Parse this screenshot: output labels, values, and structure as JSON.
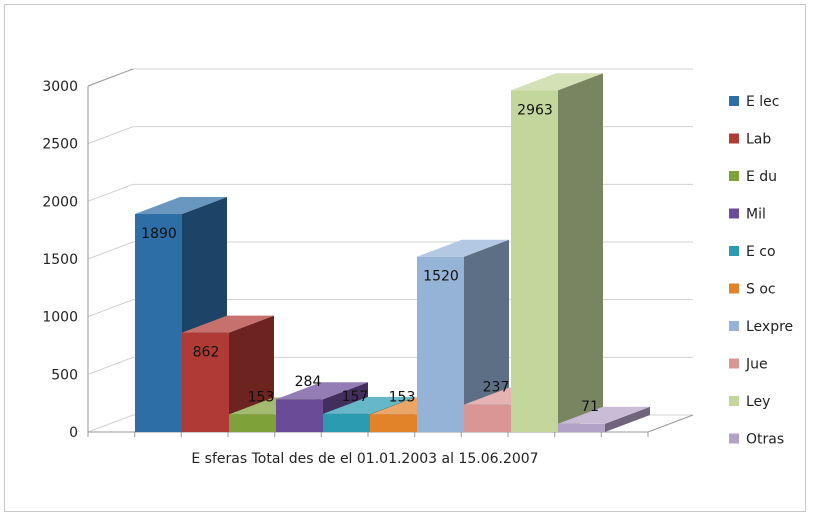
{
  "chart_data": {
    "type": "bar",
    "xlabel": "E sferas  Total des de  el 01.01.2003 al 15.06.2007",
    "ylim": [
      0,
      3000
    ],
    "yticks": [
      "0",
      "500",
      "1000",
      "1500",
      "2000",
      "2500",
      "3000"
    ],
    "grid": true,
    "legend_position": "right",
    "series": [
      {
        "name": "E lec",
        "value": 1890,
        "label": "1890",
        "color": "#2e6ea6"
      },
      {
        "name": "Lab",
        "value": 862,
        "label": "862",
        "color": "#b03a35"
      },
      {
        "name": "E du",
        "value": 153,
        "label": "153",
        "color": "#7ea13a"
      },
      {
        "name": "Mil",
        "value": 284,
        "label": "284",
        "color": "#6a4b98"
      },
      {
        "name": "E co",
        "value": 157,
        "label": "157",
        "color": "#2b9bb1"
      },
      {
        "name": "S oc",
        "value": 153,
        "label": "153",
        "color": "#e2832a"
      },
      {
        "name": "Lexpre",
        "value": 1520,
        "label": "1520",
        "color": "#95b3d7"
      },
      {
        "name": "Jue",
        "value": 237,
        "label": "237",
        "color": "#d99694"
      },
      {
        "name": "Ley",
        "value": 2963,
        "label": "2963",
        "color": "#c3d69b"
      },
      {
        "name": "Otras",
        "value": 71,
        "label": "71",
        "color": "#b3a2c7"
      }
    ]
  }
}
